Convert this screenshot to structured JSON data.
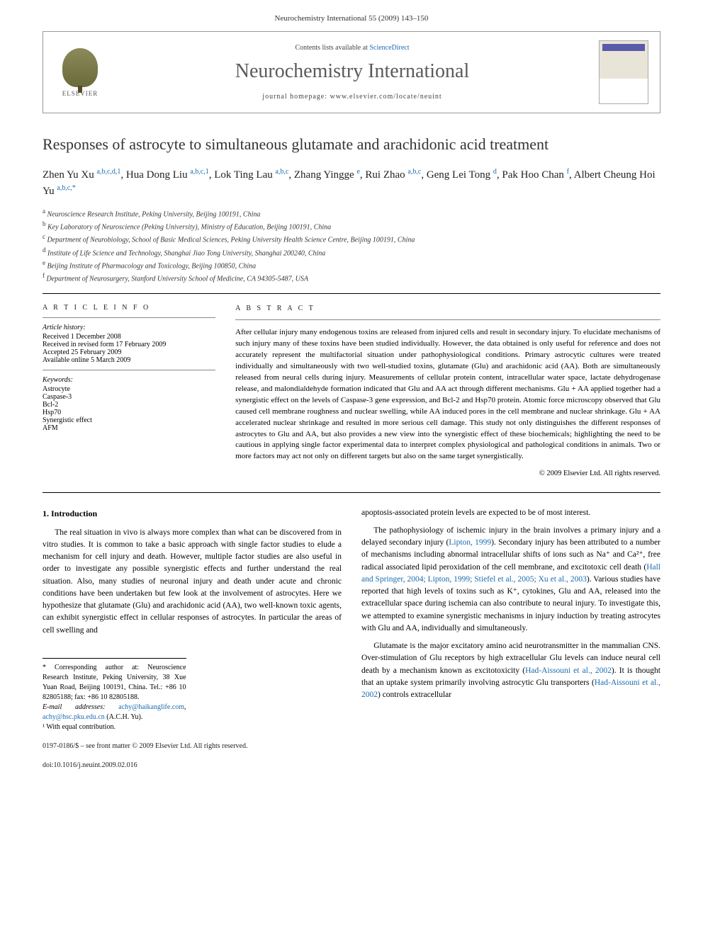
{
  "header_bar": "Neurochemistry International 55 (2009) 143–150",
  "journal_box": {
    "contents_prefix": "Contents lists available at ",
    "contents_link": "ScienceDirect",
    "journal_name": "Neurochemistry International",
    "homepage_prefix": "journal homepage: ",
    "homepage_url": "www.elsevier.com/locate/neuint",
    "publisher_label": "ELSEVIER"
  },
  "article": {
    "title": "Responses of astrocyte to simultaneous glutamate and arachidonic acid treatment",
    "authors_html": "Zhen Yu Xu <sup>a,b,c,d,1</sup>, Hua Dong Liu <sup>a,b,c,1</sup>, Lok Ting Lau <sup>a,b,c</sup>, Zhang Yingge <sup>e</sup>, Rui Zhao <sup>a,b,c</sup>, Geng Lei Tong <sup>d</sup>, Pak Hoo Chan <sup>f</sup>, Albert Cheung Hoi Yu <sup>a,b,c,*</sup>",
    "affiliations": [
      "a Neuroscience Research Institute, Peking University, Beijing 100191, China",
      "b Key Laboratory of Neuroscience (Peking University), Ministry of Education, Beijing 100191, China",
      "c Department of Neurobiology, School of Basic Medical Sciences, Peking University Health Science Centre, Beijing 100191, China",
      "d Institute of Life Science and Technology, Shanghai Jiao Tong University, Shanghai 200240, China",
      "e Beijing Institute of Pharmacology and Toxicology, Beijing 100850, China",
      "f Department of Neurosurgery, Stanford University School of Medicine, CA 94305-5487, USA"
    ]
  },
  "info": {
    "head": "A R T I C L E  I N F O",
    "history_head": "Article history:",
    "history": [
      "Received 1 December 2008",
      "Received in revised form 17 February 2009",
      "Accepted 25 February 2009",
      "Available online 5 March 2009"
    ],
    "keywords_head": "Keywords:",
    "keywords": [
      "Astrocyte",
      "Caspase-3",
      "Bcl-2",
      "Hsp70",
      "Synergistic effect",
      "AFM"
    ]
  },
  "abstract": {
    "head": "A B S T R A C T",
    "text": "After cellular injury many endogenous toxins are released from injured cells and result in secondary injury. To elucidate mechanisms of such injury many of these toxins have been studied individually. However, the data obtained is only useful for reference and does not accurately represent the multifactorial situation under pathophysiological conditions. Primary astrocytic cultures were treated individually and simultaneously with two well-studied toxins, glutamate (Glu) and arachidonic acid (AA). Both are simultaneously released from neural cells during injury. Measurements of cellular protein content, intracellular water space, lactate dehydrogenase release, and malondialdehyde formation indicated that Glu and AA act through different mechanisms. Glu + AA applied together had a synergistic effect on the levels of Caspase-3 gene expression, and Bcl-2 and Hsp70 protein. Atomic force microscopy observed that Glu caused cell membrane roughness and nuclear swelling, while AA induced pores in the cell membrane and nuclear shrinkage. Glu + AA accelerated nuclear shrinkage and resulted in more serious cell damage. This study not only distinguishes the different responses of astrocytes to Glu and AA, but also provides a new view into the synergistic effect of these biochemicals; highlighting the need to be cautious in applying single factor experimental data to interpret complex physiological and pathological conditions in animals. Two or more factors may act not only on different targets but also on the same target synergistically.",
    "copyright": "© 2009 Elsevier Ltd. All rights reserved."
  },
  "body": {
    "section1_head": "1. Introduction",
    "col1_p1": "The real situation in vivo is always more complex than what can be discovered from in vitro studies. It is common to take a basic approach with single factor studies to elude a mechanism for cell injury and death. However, multiple factor studies are also useful in order to investigate any possible synergistic effects and further understand the real situation. Also, many studies of neuronal injury and death under acute and chronic conditions have been undertaken but few look at the involvement of astrocytes. Here we hypothesize that glutamate (Glu) and arachidonic acid (AA), two well-known toxic agents, can exhibit synergistic effect in cellular responses of astrocytes. In particular the areas of cell swelling and",
    "col2_p1": "apoptosis-associated protein levels are expected to be of most interest.",
    "col2_p2_pre": "The pathophysiology of ischemic injury in the brain involves a primary injury and a delayed secondary injury (",
    "col2_p2_ref1": "Lipton, 1999",
    "col2_p2_mid": "). Secondary injury has been attributed to a number of mechanisms including abnormal intracellular shifts of ions such as Na⁺ and Ca²⁺, free radical associated lipid peroxidation of the cell membrane, and excitotoxic cell death (",
    "col2_p2_ref2": "Hall and Springer, 2004; Lipton, 1999; Stiefel et al., 2005; Xu et al., 2003",
    "col2_p2_post": "). Various studies have reported that high levels of toxins such as K⁺, cytokines, Glu and AA, released into the extracellular space during ischemia can also contribute to neural injury. To investigate this, we attempted to examine synergistic mechanisms in injury induction by treating astrocytes with Glu and AA, individually and simultaneously.",
    "col2_p3_pre": "Glutamate is the major excitatory amino acid neurotransmitter in the mammalian CNS. Over-stimulation of Glu receptors by high extracellular Glu levels can induce neural cell death by a mechanism known as excitotoxicity (",
    "col2_p3_ref1": "Had-Aissouni et al., 2002",
    "col2_p3_mid": "). It is thought that an uptake system primarily involving astrocytic Glu transporters (",
    "col2_p3_ref2": "Had-Aissouni et al., 2002",
    "col2_p3_post": ") controls extracellular"
  },
  "footnotes": {
    "corr": "* Corresponding author at: Neuroscience Research Institute, Peking University, 38 Xue Yuan Road, Beijing 100191, China. Tel.: +86 10 82805188; fax: +86 10 82805188.",
    "email_label": "E-mail addresses: ",
    "email1": "achy@haikanglife.com",
    "email2": "achy@hsc.pku.edu.cn",
    "email_suffix": " (A.C.H. Yu).",
    "equal": "¹ With equal contribution.",
    "copyright_line": "0197-0186/$ – see front matter © 2009 Elsevier Ltd. All rights reserved.",
    "doi": "doi:10.1016/j.neuint.2009.02.016"
  },
  "colors": {
    "link": "#1a6bb0",
    "journal_title": "#5a5a5a",
    "publisher": "#e67e00"
  }
}
